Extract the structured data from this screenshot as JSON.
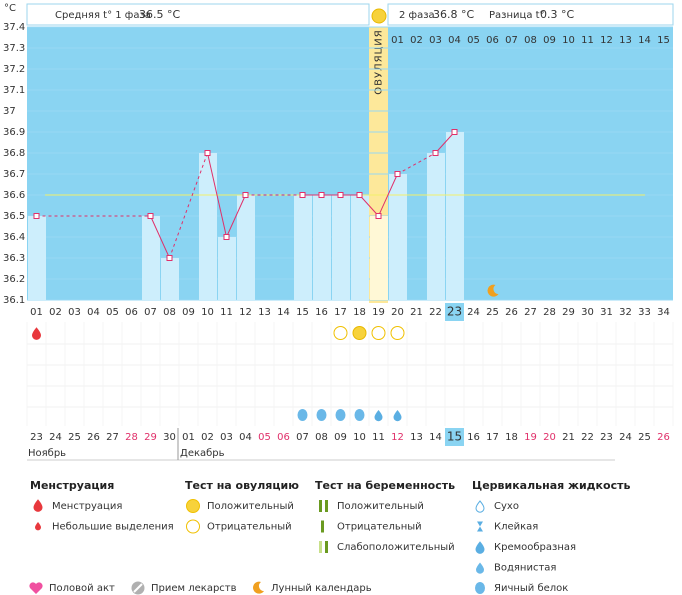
{
  "chart_data": {
    "type": "line",
    "y_unit": "°C",
    "header": {
      "phase1": "Средняя t° 1 фаза",
      "phase1_avg": "36.5 °C",
      "phase2": "2 фаза",
      "phase2_avg": "36.8 °C",
      "diff": "Разница t°",
      "diff_value": "0.3 °C"
    },
    "ovulation_label": "ОВУЛЯЦИЯ",
    "ovulation_day": 19,
    "today_day": 23,
    "categories": [
      "01",
      "02",
      "03",
      "04",
      "05",
      "06",
      "07",
      "08",
      "09",
      "10",
      "11",
      "12",
      "13",
      "14",
      "15",
      "16",
      "17",
      "18",
      "19",
      "20",
      "21",
      "22",
      "23",
      "24",
      "25",
      "26",
      "27",
      "28",
      "29",
      "30",
      "31",
      "32",
      "33",
      "34"
    ],
    "luteal_days": [
      "01",
      "02",
      "03",
      "04",
      "05",
      "06",
      "07",
      "08",
      "09",
      "10",
      "11",
      "12",
      "13",
      "14",
      "15"
    ],
    "values": [
      36.5,
      null,
      null,
      null,
      null,
      null,
      36.5,
      36.3,
      null,
      36.8,
      36.4,
      36.6,
      null,
      null,
      36.6,
      36.6,
      36.6,
      36.6,
      36.5,
      36.7,
      null,
      36.8,
      36.9,
      null,
      null,
      null,
      null,
      null,
      null,
      null,
      null,
      null,
      null,
      null
    ],
    "color": "#e0306a",
    "bar_color": "#cdeefc",
    "plot_color": "#8ad4f2",
    "cover_line": 36.6,
    "ylim": [
      36.1,
      37.4
    ],
    "yticks": [
      37.4,
      37.3,
      37.2,
      37.1,
      37,
      36.9,
      36.8,
      36.7,
      36.6,
      36.5,
      36.4,
      36.3,
      36.2,
      36.1
    ],
    "grid": true,
    "events": {
      "menstruation": [
        1
      ],
      "ovulation_test_positive": [
        18
      ],
      "ovulation_test_negative": [
        17,
        19,
        20
      ],
      "cervical_egg_white": [
        15,
        16,
        17,
        18
      ],
      "cervical_watery": [
        19,
        20
      ],
      "moon": [
        25
      ]
    },
    "calendar": {
      "dates": [
        "23",
        "24",
        "25",
        "26",
        "27",
        "28",
        "29",
        "30",
        "01",
        "02",
        "03",
        "04",
        "05",
        "06",
        "07",
        "08",
        "09",
        "10",
        "11",
        "12",
        "13",
        "14",
        "15",
        "16",
        "17",
        "18",
        "19",
        "20",
        "21",
        "22",
        "23",
        "24",
        "25",
        "26"
      ],
      "weekend_days": [
        6,
        7,
        13,
        14,
        20,
        27,
        28,
        34
      ],
      "months": [
        {
          "name": "Ноябрь",
          "day": 1
        },
        {
          "name": "Декабрь",
          "day": 9
        }
      ]
    },
    "legend": [
      {
        "title": "Менструация",
        "items": [
          "Менструация",
          "Небольшие выделения"
        ]
      },
      {
        "title": "Тест на овуляцию",
        "items": [
          "Положительный",
          "Отрицательный"
        ]
      },
      {
        "title": "Тест на беременность",
        "items": [
          "Положительный",
          "Отрицательный",
          "Слабоположительный"
        ]
      },
      {
        "title": "Цервикальная жидкость",
        "items": [
          "Сухо",
          "Клейкая",
          "Кремообразная",
          "Водянистая",
          "Яичный белок"
        ]
      }
    ],
    "legend_other": [
      "Половой акт",
      "Прием лекарств",
      "Лунный календарь"
    ]
  }
}
